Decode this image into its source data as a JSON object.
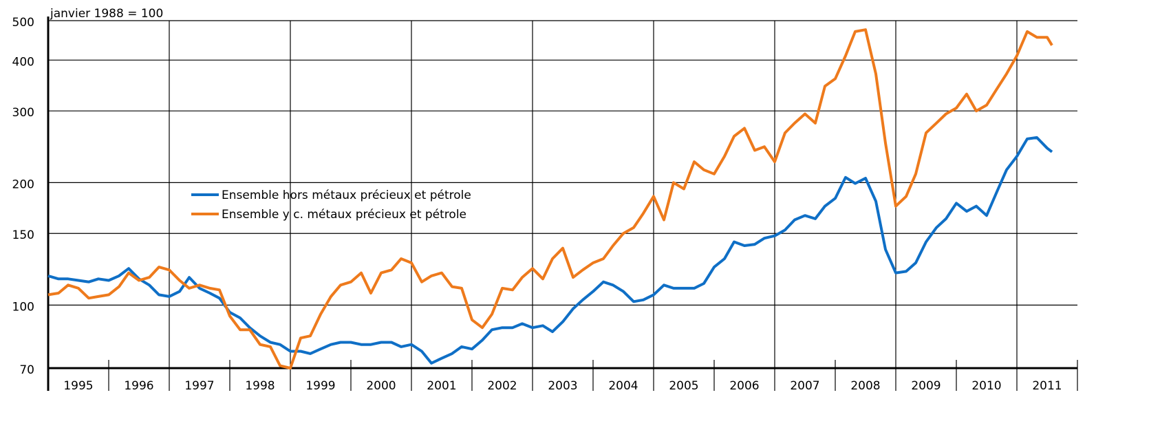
{
  "chart_data": {
    "type": "line",
    "y_label": "janvier 1988 = 100",
    "log_y": true,
    "grid": true,
    "legend": "center-left",
    "ylim": [
      70,
      500
    ],
    "yticks": [
      70,
      100,
      150,
      200,
      300,
      400,
      500
    ],
    "xlim": [
      1995,
      2012
    ],
    "xticks": [
      1995,
      1996,
      1997,
      1998,
      1999,
      2000,
      2001,
      2002,
      2003,
      2004,
      2005,
      2006,
      2007,
      2008,
      2009,
      2010,
      2011,
      2012
    ],
    "categories": [
      "1995",
      "1996",
      "1997",
      "1998",
      "1999",
      "2000",
      "2001",
      "2002",
      "2003",
      "2004",
      "2005",
      "2006",
      "2007",
      "2008",
      "2009",
      "2010",
      "2011"
    ],
    "x": [
      1995,
      1995.17,
      1995.33,
      1995.5,
      1995.67,
      1995.83,
      1996,
      1996.17,
      1996.33,
      1996.5,
      1996.67,
      1996.83,
      1997,
      1997.17,
      1997.33,
      1997.5,
      1997.67,
      1997.83,
      1998,
      1998.17,
      1998.33,
      1998.5,
      1998.67,
      1998.83,
      1999,
      1999.17,
      1999.33,
      1999.5,
      1999.67,
      1999.83,
      2000,
      2000.17,
      2000.33,
      2000.5,
      2000.67,
      2000.83,
      2001,
      2001.17,
      2001.33,
      2001.5,
      2001.67,
      2001.83,
      2002,
      2002.17,
      2002.33,
      2002.5,
      2002.67,
      2002.83,
      2003,
      2003.17,
      2003.33,
      2003.5,
      2003.67,
      2003.83,
      2004,
      2004.17,
      2004.33,
      2004.5,
      2004.67,
      2004.83,
      2005,
      2005.17,
      2005.33,
      2005.5,
      2005.67,
      2005.83,
      2006,
      2006.17,
      2006.33,
      2006.5,
      2006.67,
      2006.83,
      2007,
      2007.17,
      2007.33,
      2007.5,
      2007.67,
      2007.83,
      2008,
      2008.17,
      2008.33,
      2008.5,
      2008.67,
      2008.83,
      2009,
      2009.17,
      2009.33,
      2009.5,
      2009.67,
      2009.83,
      2010,
      2010.17,
      2010.33,
      2010.5,
      2010.67,
      2010.83,
      2011,
      2011.17,
      2011.33,
      2011.5,
      2011.58
    ],
    "series": [
      {
        "name": "Ensemble hors métaux précieux et pétrole",
        "color": "#0f6fc6",
        "values": [
          118,
          116,
          116,
          115,
          114,
          116,
          115,
          118,
          123,
          116,
          112,
          106,
          105,
          108,
          117,
          110,
          107,
          104,
          96,
          93,
          88,
          84,
          81,
          80,
          77,
          77,
          76,
          78,
          80,
          81,
          81,
          80,
          80,
          81,
          81,
          79,
          80,
          77,
          72,
          74,
          76,
          79,
          78,
          82,
          87,
          88,
          88,
          90,
          88,
          89,
          86,
          91,
          98,
          103,
          108,
          114,
          112,
          108,
          102,
          103,
          106,
          112,
          110,
          110,
          110,
          113,
          124,
          130,
          143,
          140,
          141,
          146,
          148,
          153,
          162,
          166,
          163,
          175,
          183,
          206,
          199,
          205,
          180,
          137,
          120,
          121,
          127,
          143,
          155,
          163,
          178,
          170,
          175,
          166,
          190,
          215,
          232,
          256,
          258,
          243,
          238
        ]
      },
      {
        "name": "Ensemble y c. métaux précieux et pétrole",
        "color": "#ee7a1c",
        "values": [
          106,
          107,
          112,
          110,
          104,
          105,
          106,
          111,
          120,
          115,
          117,
          124,
          122,
          115,
          110,
          112,
          110,
          109,
          94,
          87,
          87,
          80,
          79,
          71,
          70,
          83,
          84,
          95,
          105,
          112,
          114,
          120,
          107,
          120,
          122,
          130,
          127,
          114,
          118,
          120,
          111,
          110,
          92,
          88,
          95,
          110,
          109,
          117,
          123,
          116,
          130,
          138,
          117,
          122,
          127,
          130,
          140,
          150,
          155,
          168,
          185,
          162,
          200,
          193,
          225,
          215,
          210,
          232,
          260,
          272,
          240,
          245,
          225,
          265,
          280,
          295,
          280,
          345,
          360,
          410,
          470,
          475,
          370,
          250,
          175,
          185,
          210,
          265,
          280,
          295,
          305,
          330,
          300,
          310,
          340,
          370,
          410,
          470,
          455,
          455,
          435
        ]
      }
    ]
  }
}
